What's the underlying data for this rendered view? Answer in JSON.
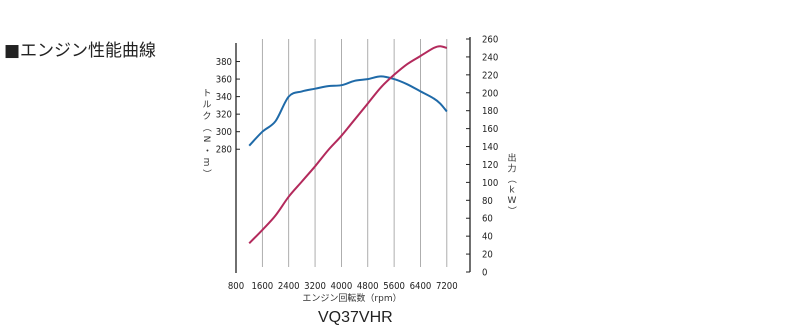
{
  "title": "■エンジン性能曲線",
  "engine_name": "VQ37VHR",
  "chart_data": {
    "type": "line",
    "xlabel": "エンジン回転数（rpm）",
    "xlim": [
      800,
      7600
    ],
    "x_ticks": [
      800,
      1600,
      2400,
      3200,
      4000,
      4800,
      5600,
      6400,
      7200
    ],
    "x_grid": [
      1600,
      2400,
      3200,
      4000,
      4800,
      5600,
      6400,
      7200
    ],
    "left_axis": {
      "label_chars": [
        "ト",
        "ル",
        "ク",
        "（",
        "N",
        "・",
        "m",
        "）"
      ],
      "ylim": [
        140,
        400
      ],
      "ticks": [
        280,
        300,
        320,
        340,
        360,
        380
      ]
    },
    "right_axis": {
      "label_chars": [
        "出",
        "力",
        "（",
        "k",
        "W",
        "）"
      ],
      "ylim": [
        0,
        260
      ],
      "ticks": [
        0,
        20,
        40,
        60,
        80,
        100,
        120,
        140,
        160,
        180,
        200,
        220,
        240,
        260
      ]
    },
    "series": [
      {
        "key": "torque",
        "axis": "left",
        "color": "#1f6aa8",
        "x": [
          1200,
          1600,
          2000,
          2400,
          2800,
          3200,
          3600,
          4000,
          4400,
          4800,
          5200,
          5600,
          6000,
          6400,
          6800,
          7000,
          7200
        ],
        "y": [
          284,
          300,
          312,
          340,
          346,
          349,
          352,
          353,
          358,
          360,
          363,
          360,
          354,
          346,
          338,
          332,
          323
        ]
      },
      {
        "key": "power",
        "axis": "right",
        "color": "#b32a5c",
        "x": [
          1200,
          1600,
          2000,
          2400,
          2800,
          3200,
          3600,
          4000,
          4400,
          4800,
          5200,
          5600,
          6000,
          6400,
          6800,
          7000,
          7200
        ],
        "y": [
          32,
          47,
          63,
          84,
          101,
          118,
          136,
          152,
          170,
          188,
          206,
          220,
          232,
          241,
          250,
          252,
          250
        ]
      }
    ],
    "grid": "vertical"
  }
}
